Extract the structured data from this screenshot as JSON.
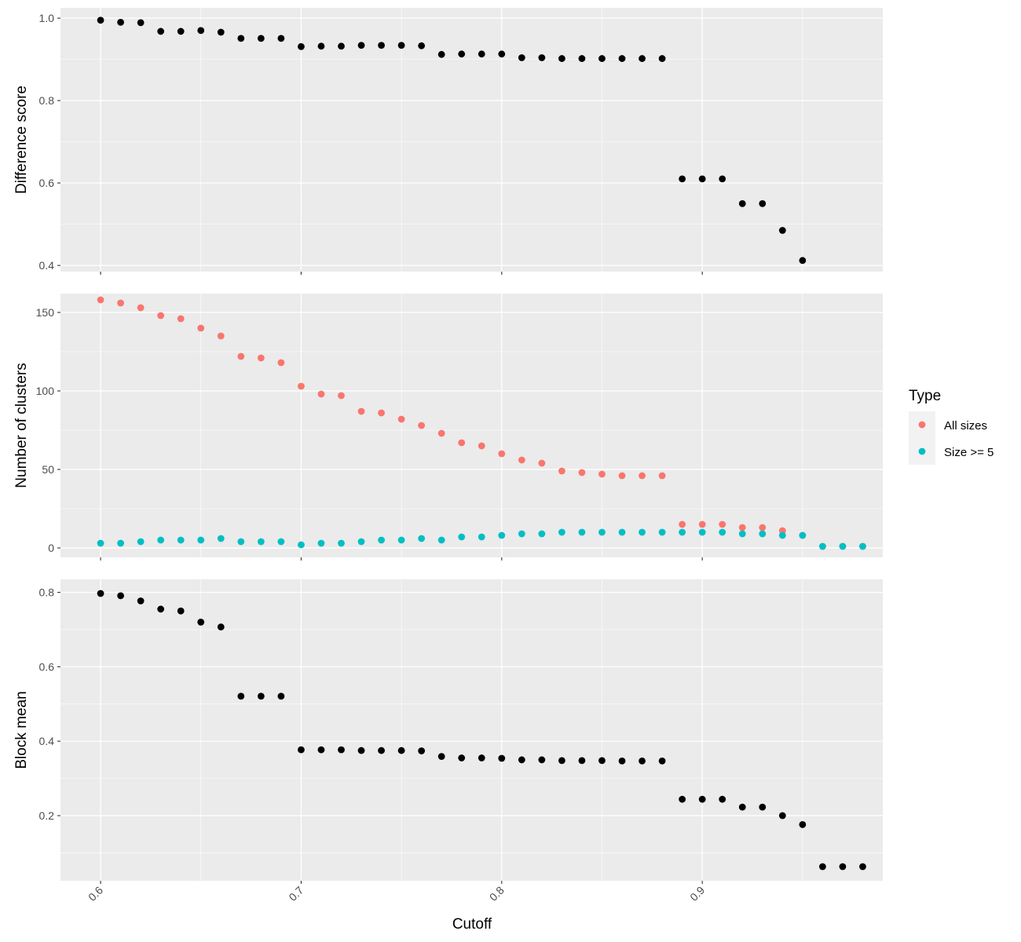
{
  "chart_data": {
    "type": "scatter",
    "xlabel": "Cutoff",
    "xlim": [
      0.58,
      0.99
    ],
    "xticks": [
      0.6,
      0.7,
      0.8,
      0.9
    ],
    "xtick_labels": [
      "0.6",
      "0.7",
      "0.8",
      "0.9"
    ],
    "x_minor_breaks": [
      0.65,
      0.75,
      0.85,
      0.95
    ],
    "grid": true,
    "legend": {
      "title": "Type",
      "placement": "right",
      "entries": [
        {
          "label": "All sizes",
          "color": "#F8766D"
        },
        {
          "label": "Size >= 5",
          "color": "#00BFC4"
        }
      ]
    },
    "panels": [
      {
        "ylabel": "Difference score",
        "ylim": [
          0.385,
          1.025
        ],
        "yticks": [
          0.4,
          0.6,
          0.8,
          1.0
        ],
        "ytick_labels": [
          "0.4",
          "0.6",
          "0.8",
          "1.0"
        ],
        "y_minor_breaks": [
          0.5,
          0.7,
          0.9
        ],
        "series": [
          {
            "color": "#000000",
            "x": [
              0.6,
              0.61,
              0.62,
              0.63,
              0.64,
              0.65,
              0.66,
              0.67,
              0.68,
              0.69,
              0.7,
              0.71,
              0.72,
              0.73,
              0.74,
              0.75,
              0.76,
              0.77,
              0.78,
              0.79,
              0.8,
              0.81,
              0.82,
              0.83,
              0.84,
              0.85,
              0.86,
              0.87,
              0.88,
              0.89,
              0.9,
              0.91,
              0.92,
              0.93,
              0.94,
              0.95
            ],
            "y": [
              0.995,
              0.99,
              0.989,
              0.968,
              0.968,
              0.97,
              0.966,
              0.951,
              0.951,
              0.951,
              0.931,
              0.932,
              0.932,
              0.934,
              0.934,
              0.934,
              0.933,
              0.912,
              0.913,
              0.913,
              0.913,
              0.904,
              0.904,
              0.902,
              0.902,
              0.902,
              0.902,
              0.902,
              0.902,
              0.61,
              0.61,
              0.61,
              0.55,
              0.55,
              0.485,
              0.412
            ]
          }
        ]
      },
      {
        "ylabel": "Number of clusters",
        "ylim": [
          -6,
          162
        ],
        "yticks": [
          0,
          50,
          100,
          150
        ],
        "ytick_labels": [
          "0",
          "50",
          "100",
          "150"
        ],
        "y_minor_breaks": [
          25,
          75,
          125
        ],
        "series": [
          {
            "name": "All sizes",
            "color": "#F8766D",
            "x": [
              0.6,
              0.61,
              0.62,
              0.63,
              0.64,
              0.65,
              0.66,
              0.67,
              0.68,
              0.69,
              0.7,
              0.71,
              0.72,
              0.73,
              0.74,
              0.75,
              0.76,
              0.77,
              0.78,
              0.79,
              0.8,
              0.81,
              0.82,
              0.83,
              0.84,
              0.85,
              0.86,
              0.87,
              0.88,
              0.89,
              0.9,
              0.91,
              0.92,
              0.93,
              0.94,
              0.95,
              0.96,
              0.97,
              0.98
            ],
            "y": [
              158,
              156,
              153,
              148,
              146,
              140,
              135,
              122,
              121,
              118,
              103,
              98,
              97,
              87,
              86,
              82,
              78,
              73,
              67,
              65,
              60,
              56,
              54,
              49,
              48,
              47,
              46,
              46,
              46,
              15,
              15,
              15,
              13,
              13,
              11,
              8,
              1,
              1,
              1
            ]
          },
          {
            "name": "Size >= 5",
            "color": "#00BFC4",
            "x": [
              0.6,
              0.61,
              0.62,
              0.63,
              0.64,
              0.65,
              0.66,
              0.67,
              0.68,
              0.69,
              0.7,
              0.71,
              0.72,
              0.73,
              0.74,
              0.75,
              0.76,
              0.77,
              0.78,
              0.79,
              0.8,
              0.81,
              0.82,
              0.83,
              0.84,
              0.85,
              0.86,
              0.87,
              0.88,
              0.89,
              0.9,
              0.91,
              0.92,
              0.93,
              0.94,
              0.95,
              0.96,
              0.97,
              0.98
            ],
            "y": [
              3,
              3,
              4,
              5,
              5,
              5,
              6,
              4,
              4,
              4,
              2,
              3,
              3,
              4,
              5,
              5,
              6,
              5,
              7,
              7,
              8,
              9,
              9,
              10,
              10,
              10,
              10,
              10,
              10,
              10,
              10,
              10,
              9,
              9,
              8,
              8,
              1,
              1,
              1
            ]
          }
        ]
      },
      {
        "ylabel": "Block mean",
        "ylim": [
          0.025,
          0.835
        ],
        "yticks": [
          0.2,
          0.4,
          0.6,
          0.8
        ],
        "ytick_labels": [
          "0.2",
          "0.4",
          "0.6",
          "0.8"
        ],
        "y_minor_breaks": [
          0.1,
          0.3,
          0.5,
          0.7
        ],
        "series": [
          {
            "color": "#000000",
            "x": [
              0.6,
              0.61,
              0.62,
              0.63,
              0.64,
              0.65,
              0.66,
              0.67,
              0.68,
              0.69,
              0.7,
              0.71,
              0.72,
              0.73,
              0.74,
              0.75,
              0.76,
              0.77,
              0.78,
              0.79,
              0.8,
              0.81,
              0.82,
              0.83,
              0.84,
              0.85,
              0.86,
              0.87,
              0.88,
              0.89,
              0.9,
              0.91,
              0.92,
              0.93,
              0.94,
              0.95,
              0.96,
              0.97,
              0.98
            ],
            "y": [
              0.797,
              0.791,
              0.777,
              0.755,
              0.75,
              0.72,
              0.707,
              0.521,
              0.521,
              0.521,
              0.377,
              0.377,
              0.377,
              0.375,
              0.375,
              0.375,
              0.374,
              0.359,
              0.355,
              0.355,
              0.354,
              0.35,
              0.35,
              0.348,
              0.348,
              0.348,
              0.347,
              0.347,
              0.347,
              0.244,
              0.244,
              0.244,
              0.223,
              0.223,
              0.2,
              0.176,
              0.063,
              0.063,
              0.063
            ]
          }
        ]
      }
    ]
  }
}
